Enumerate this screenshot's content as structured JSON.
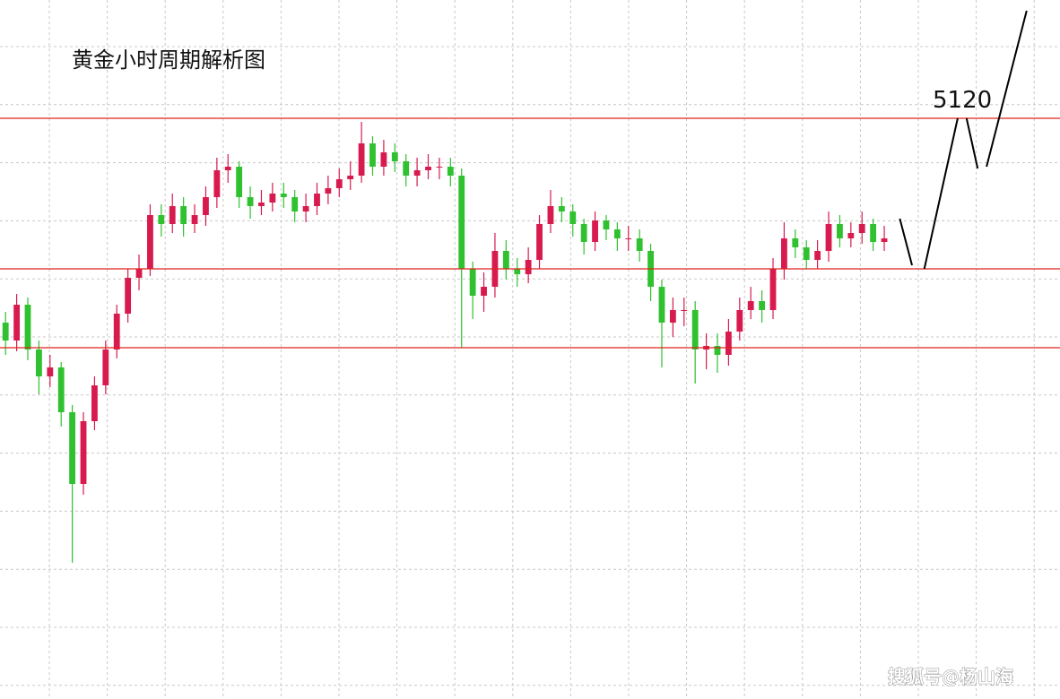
{
  "chart_data": {
    "type": "candlestick",
    "title": "黄金小时周期解析图",
    "watermark": "搜狐号@杨山海",
    "xlim": [
      -0.5,
      94.8
    ],
    "ylim": [
      4796,
      5186
    ],
    "up_color": "#d81b4f",
    "down_color": "#2fc12f",
    "ohlc": [
      [
        5006,
        5012,
        4988,
        4996
      ],
      [
        4996,
        5022,
        4990,
        5016
      ],
      [
        5016,
        5020,
        4985,
        4991
      ],
      [
        4991,
        4996,
        4966,
        4976
      ],
      [
        4976,
        4988,
        4970,
        4981
      ],
      [
        4981,
        4984,
        4948,
        4956
      ],
      [
        4956,
        4960,
        4872,
        4916
      ],
      [
        4916,
        4956,
        4910,
        4951
      ],
      [
        4951,
        4976,
        4946,
        4971
      ],
      [
        4971,
        4996,
        4966,
        4991
      ],
      [
        4991,
        5016,
        4986,
        5011
      ],
      [
        5011,
        5036,
        5006,
        5031
      ],
      [
        5031,
        5044,
        5024,
        5036
      ],
      [
        5036,
        5072,
        5032,
        5066
      ],
      [
        5066,
        5072,
        5054,
        5061
      ],
      [
        5061,
        5078,
        5056,
        5071
      ],
      [
        5071,
        5076,
        5054,
        5061
      ],
      [
        5061,
        5072,
        5056,
        5066
      ],
      [
        5066,
        5082,
        5060,
        5076
      ],
      [
        5076,
        5098,
        5070,
        5091
      ],
      [
        5091,
        5100,
        5084,
        5093
      ],
      [
        5093,
        5096,
        5070,
        5076
      ],
      [
        5076,
        5082,
        5064,
        5071
      ],
      [
        5071,
        5080,
        5066,
        5073
      ],
      [
        5073,
        5084,
        5068,
        5078
      ],
      [
        5078,
        5084,
        5070,
        5076
      ],
      [
        5076,
        5080,
        5062,
        5068
      ],
      [
        5068,
        5078,
        5062,
        5071
      ],
      [
        5071,
        5084,
        5066,
        5078
      ],
      [
        5078,
        5088,
        5072,
        5081
      ],
      [
        5081,
        5092,
        5076,
        5086
      ],
      [
        5086,
        5096,
        5080,
        5088
      ],
      [
        5088,
        5118,
        5084,
        5106
      ],
      [
        5106,
        5110,
        5088,
        5093
      ],
      [
        5093,
        5108,
        5088,
        5101
      ],
      [
        5101,
        5106,
        5090,
        5096
      ],
      [
        5096,
        5100,
        5082,
        5088
      ],
      [
        5088,
        5098,
        5082,
        5091
      ],
      [
        5091,
        5100,
        5086,
        5093
      ],
      [
        5093,
        5098,
        5086,
        5093
      ],
      [
        5093,
        5098,
        5082,
        5088
      ],
      [
        5088,
        5092,
        4992,
        5036
      ],
      [
        5036,
        5040,
        5008,
        5021
      ],
      [
        5021,
        5034,
        5012,
        5026
      ],
      [
        5026,
        5056,
        5020,
        5046
      ],
      [
        5046,
        5052,
        5030,
        5036
      ],
      [
        5036,
        5042,
        5026,
        5033
      ],
      [
        5033,
        5048,
        5028,
        5041
      ],
      [
        5041,
        5066,
        5036,
        5061
      ],
      [
        5061,
        5080,
        5056,
        5071
      ],
      [
        5071,
        5076,
        5062,
        5068
      ],
      [
        5068,
        5072,
        5054,
        5061
      ],
      [
        5061,
        5064,
        5044,
        5051
      ],
      [
        5051,
        5068,
        5046,
        5063
      ],
      [
        5063,
        5066,
        5052,
        5058
      ],
      [
        5058,
        5062,
        5046,
        5053
      ],
      [
        5053,
        5060,
        5046,
        5053
      ],
      [
        5053,
        5058,
        5040,
        5046
      ],
      [
        5046,
        5050,
        5018,
        5026
      ],
      [
        5026,
        5030,
        4981,
        5006
      ],
      [
        5006,
        5020,
        4998,
        5013
      ],
      [
        5013,
        5020,
        5004,
        5013
      ],
      [
        5013,
        5018,
        4972,
        4991
      ],
      [
        4991,
        5000,
        4980,
        4993
      ],
      [
        4993,
        5000,
        4978,
        4988
      ],
      [
        4988,
        5008,
        4982,
        5001
      ],
      [
        5001,
        5020,
        4996,
        5013
      ],
      [
        5013,
        5026,
        5008,
        5018
      ],
      [
        5018,
        5024,
        5006,
        5013
      ],
      [
        5013,
        5042,
        5008,
        5036
      ],
      [
        5036,
        5062,
        5030,
        5053
      ],
      [
        5053,
        5058,
        5042,
        5048
      ],
      [
        5048,
        5052,
        5036,
        5041
      ],
      [
        5041,
        5052,
        5036,
        5046
      ],
      [
        5046,
        5068,
        5040,
        5061
      ],
      [
        5061,
        5066,
        5048,
        5053
      ],
      [
        5053,
        5062,
        5048,
        5056
      ],
      [
        5056,
        5068,
        5050,
        5061
      ],
      [
        5061,
        5064,
        5046,
        5051
      ],
      [
        5051,
        5060,
        5046,
        5053
      ]
    ],
    "levels": {
      "color": "#e0201c",
      "values": [
        5120,
        5036,
        4992
      ]
    },
    "projection": {
      "label": "5120",
      "color": "#000000",
      "x": [
        80.4,
        81.5,
        null,
        82.6,
        85.6,
        null,
        86.4,
        87.4,
        null,
        88.2,
        91.8
      ],
      "y": [
        5064,
        5038,
        null,
        5036,
        5120,
        null,
        5120,
        5092,
        null,
        5093,
        5180
      ]
    }
  }
}
